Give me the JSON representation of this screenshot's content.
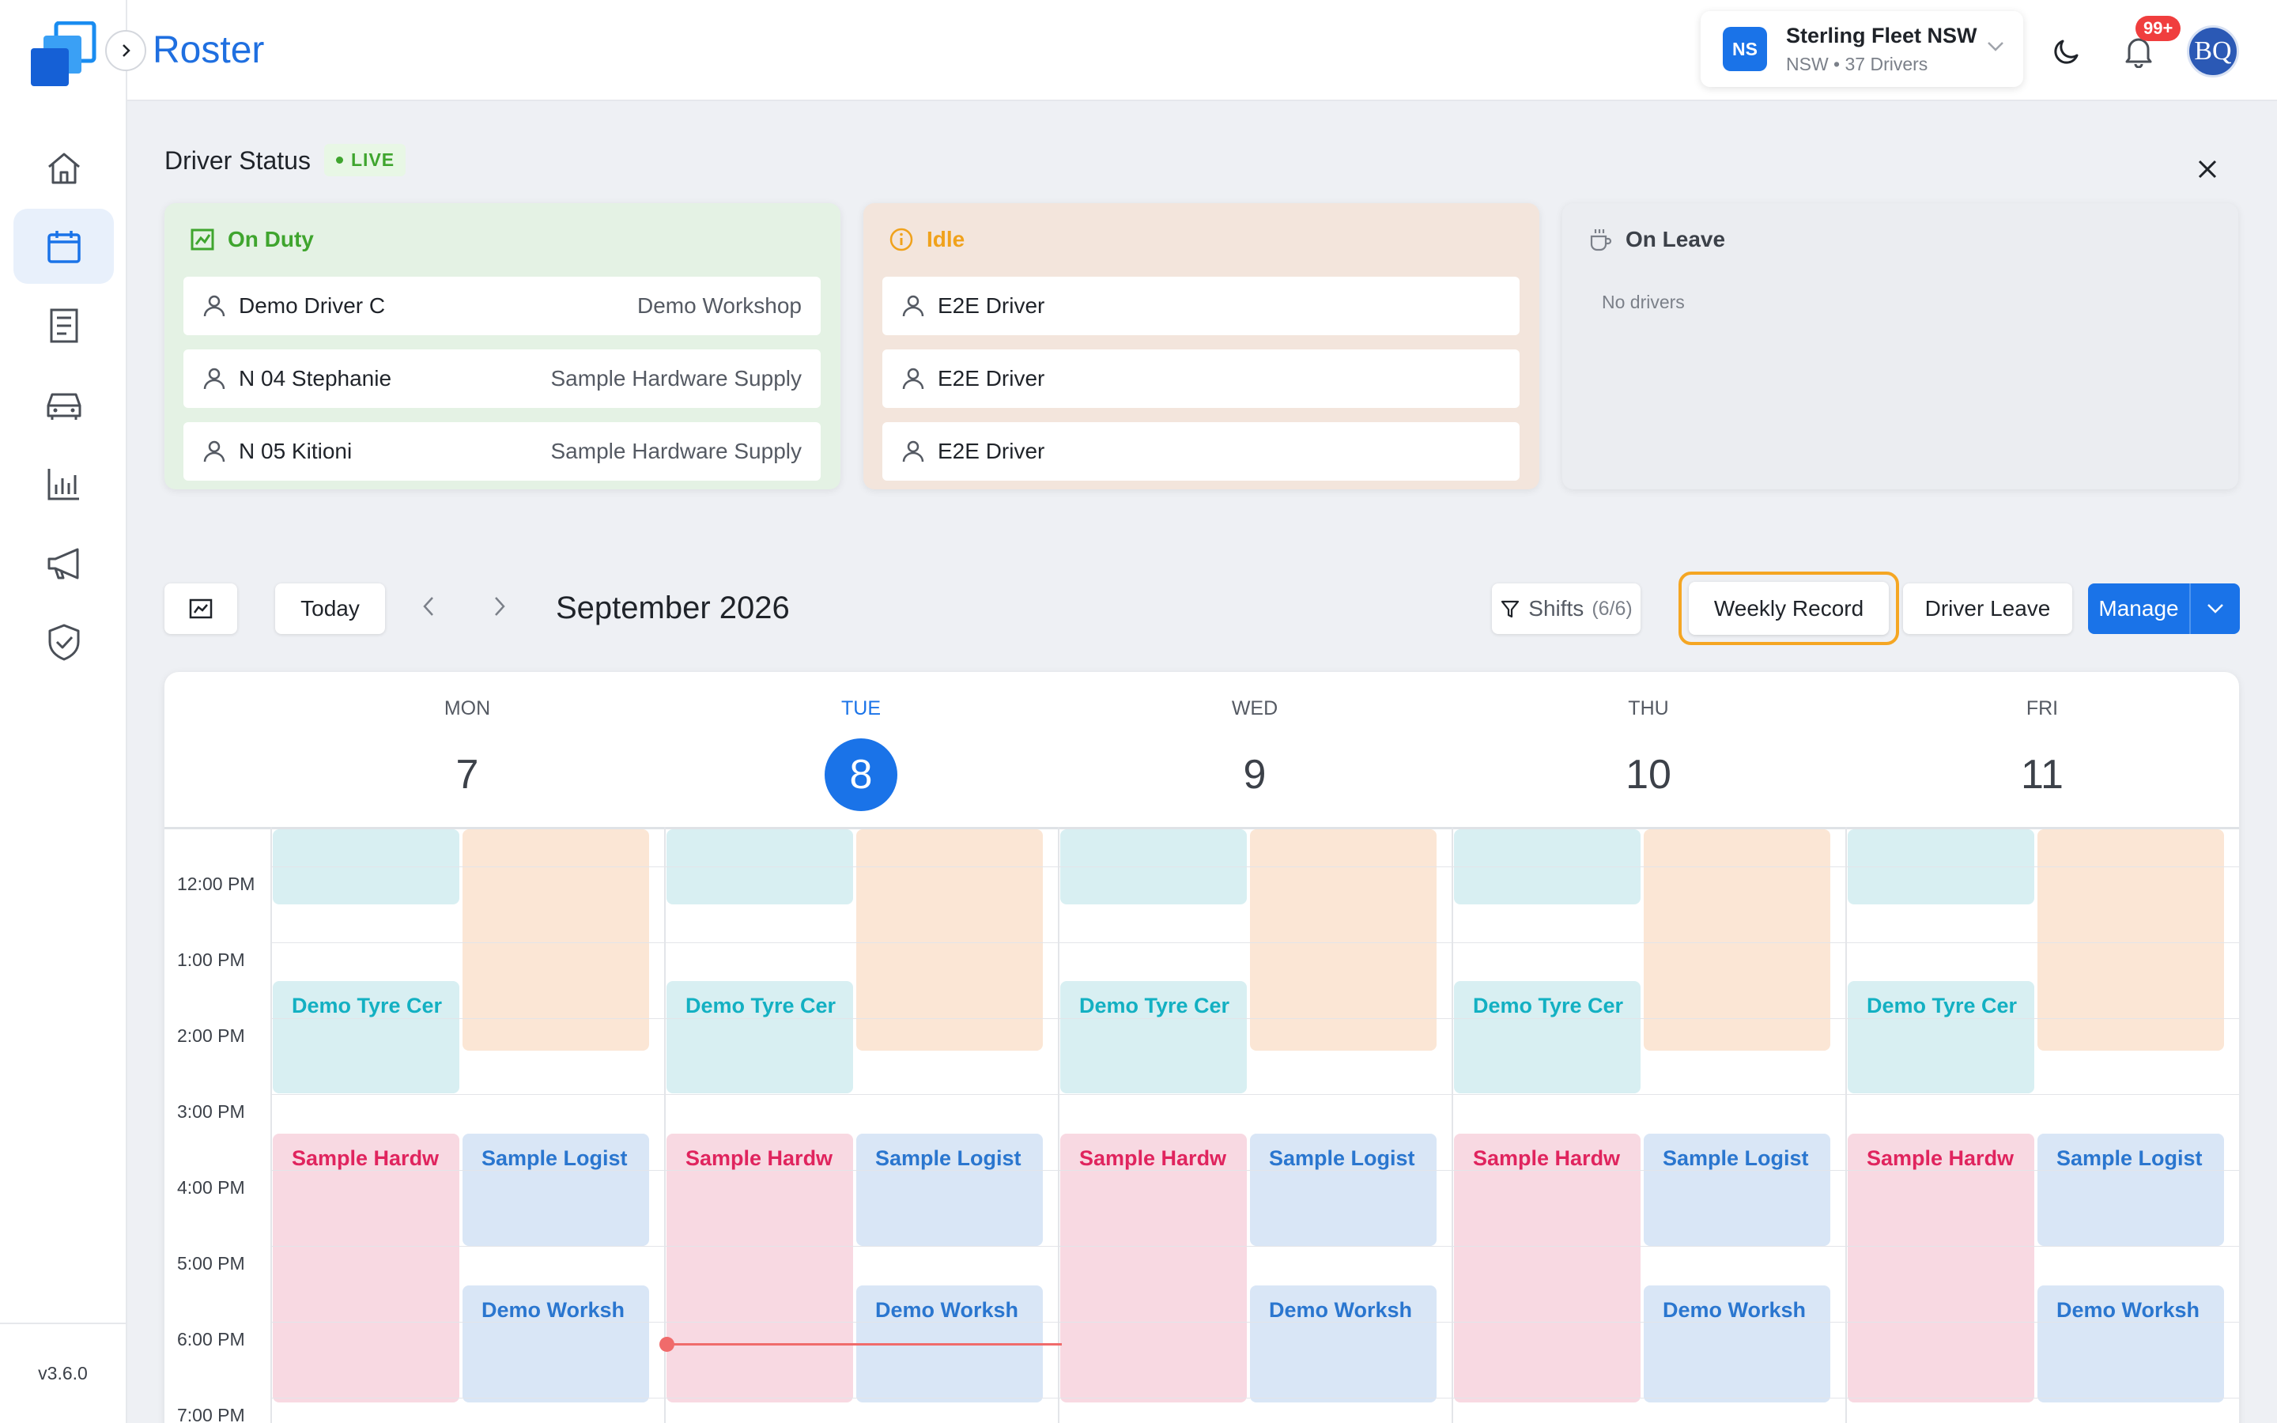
{
  "app": {
    "title": "Roster",
    "version": "v3.6.0"
  },
  "sidebar": {
    "items": [
      {
        "name": "home",
        "icon": "home-icon"
      },
      {
        "name": "roster",
        "icon": "calendar-icon",
        "active": true
      },
      {
        "name": "records",
        "icon": "document-icon"
      },
      {
        "name": "vehicles",
        "icon": "car-icon"
      },
      {
        "name": "reports",
        "icon": "bar-chart-icon"
      },
      {
        "name": "announcements",
        "icon": "megaphone-icon"
      },
      {
        "name": "compliance",
        "icon": "shield-check-icon"
      }
    ]
  },
  "topbar": {
    "fleet": {
      "initials": "NS",
      "name": "Sterling Fleet NSW",
      "subtitle": "NSW • 37 Drivers"
    },
    "notifications_badge": "99+",
    "avatar_initials": "BQ"
  },
  "driver_status": {
    "title": "Driver Status",
    "live_label": "LIVE",
    "on_duty": {
      "label": "On Duty",
      "drivers": [
        {
          "name": "Demo Driver C",
          "location": "Demo Workshop"
        },
        {
          "name": "N 04 Stephanie",
          "location": "Sample Hardware Supply"
        },
        {
          "name": "N 05 Kitioni",
          "location": "Sample Hardware Supply"
        }
      ]
    },
    "idle": {
      "label": "Idle",
      "drivers": [
        {
          "name": "E2E Driver"
        },
        {
          "name": "E2E Driver"
        },
        {
          "name": "E2E Driver"
        }
      ]
    },
    "on_leave": {
      "label": "On Leave",
      "empty_text": "No drivers"
    }
  },
  "toolbar": {
    "today_label": "Today",
    "month_label": "September 2026",
    "shifts_label": "Shifts",
    "shifts_count": "(6/6)",
    "weekly_record_label": "Weekly Record",
    "driver_leave_label": "Driver Leave",
    "manage_label": "Manage"
  },
  "calendar": {
    "days": [
      {
        "name": "MON",
        "num": "7"
      },
      {
        "name": "TUE",
        "num": "8",
        "today": true
      },
      {
        "name": "WED",
        "num": "9"
      },
      {
        "name": "THU",
        "num": "10"
      },
      {
        "name": "FRI",
        "num": "11"
      }
    ],
    "times": [
      "12:00 PM",
      "1:00 PM",
      "2:00 PM",
      "3:00 PM",
      "4:00 PM",
      "5:00 PM",
      "6:00 PM",
      "7:00 PM"
    ],
    "events": {
      "tyre": "Demo Tyre Cer",
      "hardware": "Sample Hardw",
      "logistics": "Sample Logist",
      "workshop": "Demo Worksh"
    },
    "colors": {
      "tyre": "#d8eff2",
      "peach": "#fbe6d5",
      "hardware": "#f8d9e2",
      "logistics": "#d9e6f6",
      "now_line": "#f06b6b"
    }
  }
}
